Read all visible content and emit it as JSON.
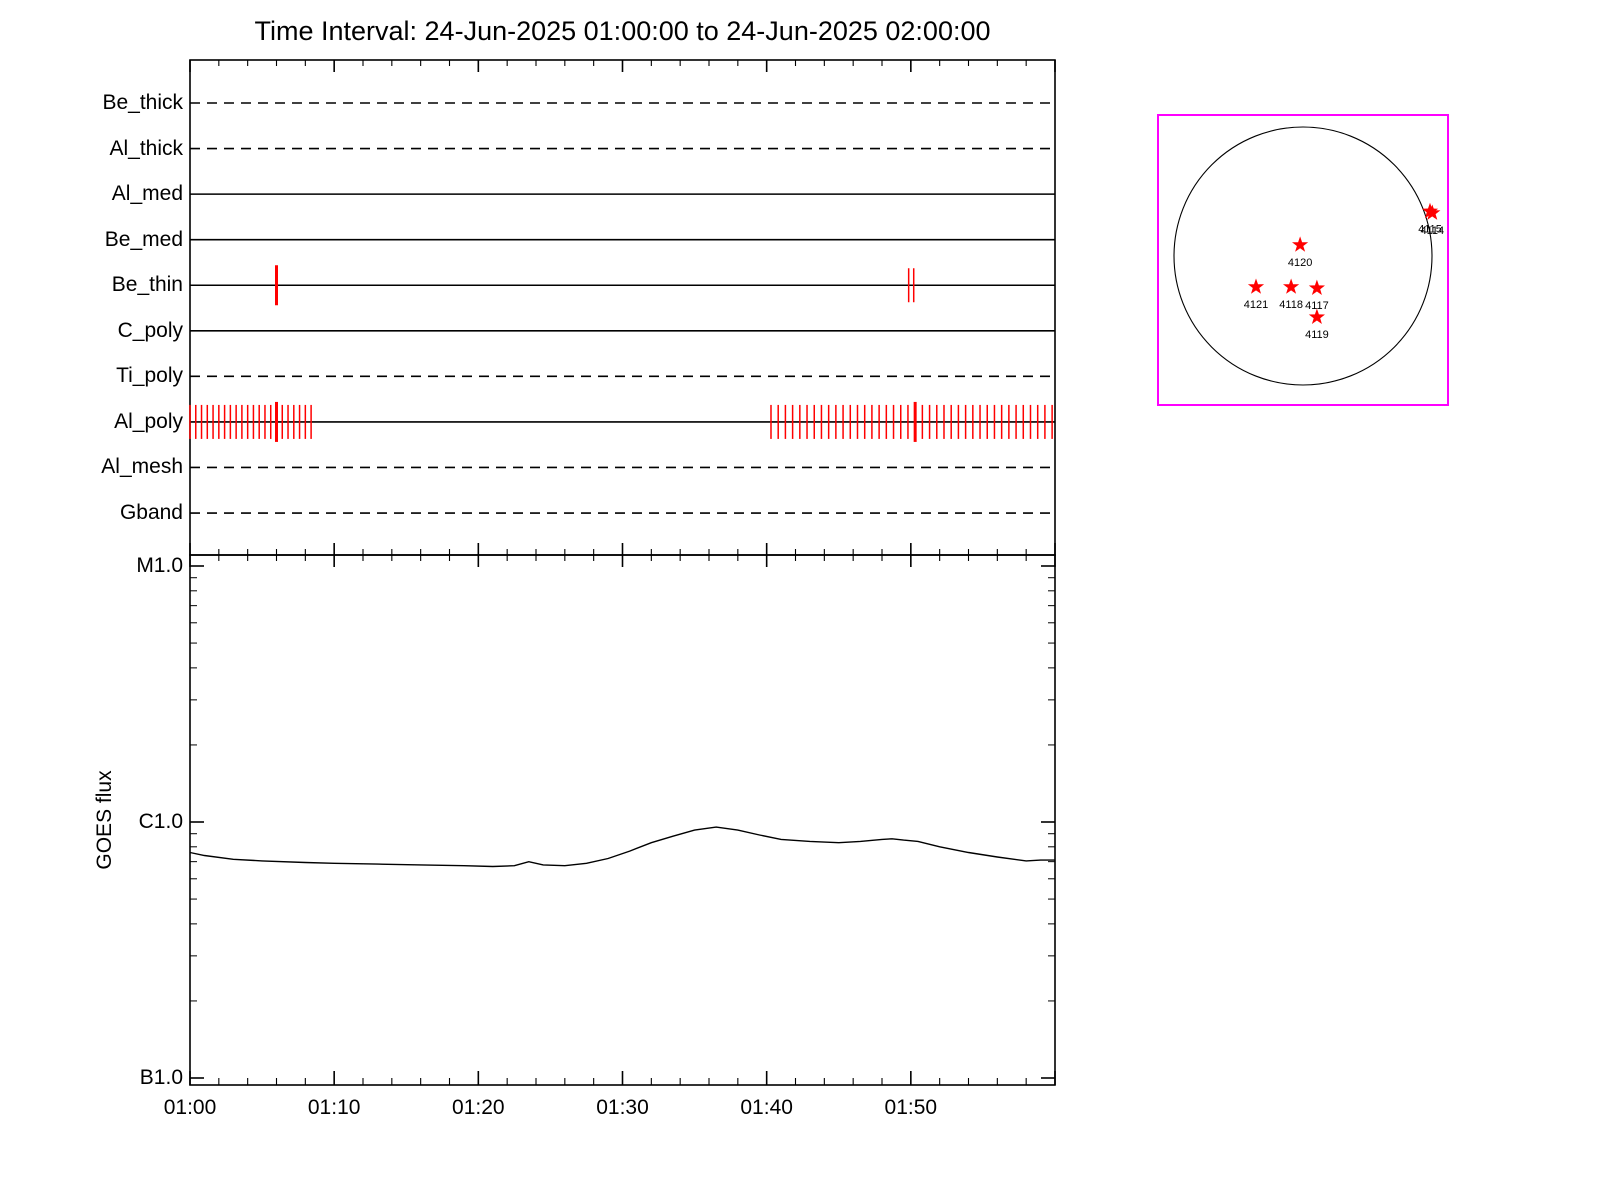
{
  "title": "Time Interval: 24-Jun-2025 01:00:00 to 24-Jun-2025 02:00:00",
  "colors": {
    "exposure_mark": "#ff0000",
    "active_region_star": "#ff0000",
    "sun_box_border": "#ff00ff",
    "axis": "#000000",
    "background": "#ffffff"
  },
  "filter_panel": {
    "time_start_label": "01:00",
    "time_end_label": "02:00",
    "filters": [
      {
        "name": "Be_thick",
        "line_style": "dashed",
        "exposure_marks": [],
        "strong_marks": []
      },
      {
        "name": "Al_thick",
        "line_style": "dashed",
        "exposure_marks": [],
        "strong_marks": []
      },
      {
        "name": "Al_med",
        "line_style": "solid",
        "exposure_marks": [],
        "strong_marks": []
      },
      {
        "name": "Be_med",
        "line_style": "solid",
        "exposure_marks": [],
        "strong_marks": []
      },
      {
        "name": "Be_thin",
        "line_style": "solid",
        "exposure_marks": [
          49.85,
          50.2
        ],
        "strong_marks": [
          6.0
        ]
      },
      {
        "name": "C_poly",
        "line_style": "solid",
        "exposure_marks": [],
        "strong_marks": []
      },
      {
        "name": "Ti_poly",
        "line_style": "dashed",
        "exposure_marks": [],
        "strong_marks": []
      },
      {
        "name": "Al_poly",
        "line_style": "solid",
        "exposure_marks": [
          0,
          0.4,
          0.8,
          1.2,
          1.6,
          2.0,
          2.4,
          2.8,
          3.2,
          3.6,
          4.0,
          4.4,
          4.8,
          5.2,
          5.6,
          6.4,
          6.8,
          7.2,
          7.6,
          8.0,
          8.4,
          40.3,
          40.8,
          41.3,
          41.8,
          42.3,
          42.8,
          43.3,
          43.8,
          44.3,
          44.8,
          45.3,
          45.8,
          46.3,
          46.8,
          47.3,
          47.8,
          48.3,
          48.8,
          49.3,
          49.8,
          50.8,
          51.3,
          51.8,
          52.3,
          52.8,
          53.3,
          53.8,
          54.3,
          54.8,
          55.3,
          55.8,
          56.3,
          56.8,
          57.3,
          57.8,
          58.3,
          58.8,
          59.3,
          59.8
        ],
        "strong_marks": [
          6.0,
          50.3
        ]
      },
      {
        "name": "Al_mesh",
        "line_style": "dashed",
        "exposure_marks": [],
        "strong_marks": []
      },
      {
        "name": "Gband",
        "line_style": "dashed",
        "exposure_marks": [],
        "strong_marks": []
      }
    ]
  },
  "chart_data": {
    "type": "line",
    "title": "",
    "xlabel": "",
    "ylabel": "GOES flux",
    "yscale": "log",
    "grid": false,
    "xlim_minutes": [
      0,
      60
    ],
    "ylim": [
      9.4e-08,
      1.1e-05
    ],
    "y_ticks": [
      {
        "label": "M1.0",
        "value": 1e-05
      },
      {
        "label": "C1.0",
        "value": 1e-06
      },
      {
        "label": "B1.0",
        "value": 1e-07
      }
    ],
    "x_ticks": [
      {
        "label": "01:00",
        "minutes": 0
      },
      {
        "label": "01:10",
        "minutes": 10
      },
      {
        "label": "01:20",
        "minutes": 20
      },
      {
        "label": "01:30",
        "minutes": 30
      },
      {
        "label": "01:40",
        "minutes": 40
      },
      {
        "label": "01:50",
        "minutes": 50
      }
    ],
    "series": [
      {
        "name": "GOES flux",
        "x_minutes": [
          0,
          1,
          3,
          5,
          8,
          10,
          13,
          16,
          19,
          21,
          22.5,
          23.5,
          24.5,
          26,
          27.5,
          29,
          30.5,
          32,
          33.5,
          35,
          36.5,
          38,
          39.5,
          41,
          43,
          45,
          46.5,
          48,
          48.7,
          49.5,
          50.5,
          52,
          54,
          56,
          58,
          59,
          60
        ],
        "flux_w_m2": [
          7.6e-07,
          7.4e-07,
          7.15e-07,
          7.05e-07,
          6.95e-07,
          6.9e-07,
          6.85e-07,
          6.8e-07,
          6.75e-07,
          6.7e-07,
          6.75e-07,
          7e-07,
          6.8e-07,
          6.75e-07,
          6.9e-07,
          7.2e-07,
          7.7e-07,
          8.3e-07,
          8.8e-07,
          9.3e-07,
          9.55e-07,
          9.3e-07,
          8.9e-07,
          8.55e-07,
          8.4e-07,
          8.3e-07,
          8.4e-07,
          8.55e-07,
          8.6e-07,
          8.5e-07,
          8.4e-07,
          8e-07,
          7.6e-07,
          7.3e-07,
          7.05e-07,
          7.1e-07,
          7.1e-07
        ]
      }
    ]
  },
  "sun_map": {
    "active_regions": [
      {
        "label": "4120",
        "fx": 0.49,
        "fy": 0.448
      },
      {
        "label": "4121",
        "fx": 0.338,
        "fy": 0.593
      },
      {
        "label": "4118",
        "fx": 0.459,
        "fy": 0.593
      },
      {
        "label": "4117",
        "fx": 0.548,
        "fy": 0.597
      },
      {
        "label": "4119",
        "fx": 0.548,
        "fy": 0.697
      },
      {
        "label": "4115",
        "fx": 0.938,
        "fy": 0.332
      },
      {
        "label": "4114",
        "fx": 0.946,
        "fy": 0.338
      }
    ]
  }
}
